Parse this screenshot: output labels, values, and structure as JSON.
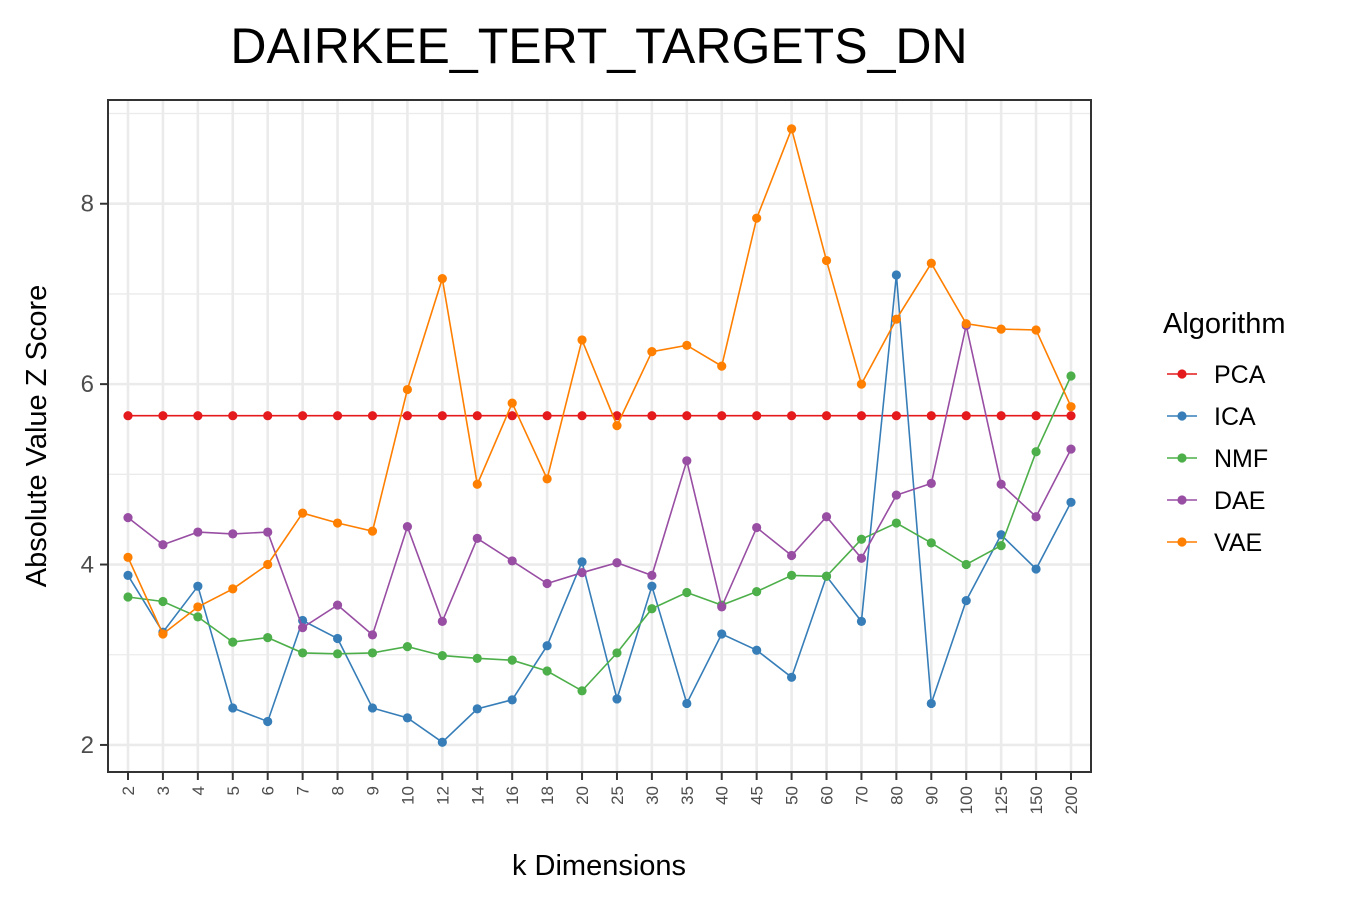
{
  "chart_data": {
    "type": "line",
    "title": "DAIRKEE_TERT_TARGETS_DN",
    "xlabel": "k Dimensions",
    "ylabel": "Absolute Value Z Score",
    "categories": [
      "2",
      "3",
      "4",
      "5",
      "6",
      "7",
      "8",
      "9",
      "10",
      "12",
      "14",
      "16",
      "18",
      "20",
      "25",
      "30",
      "35",
      "40",
      "45",
      "50",
      "60",
      "70",
      "80",
      "90",
      "100",
      "125",
      "150",
      "200"
    ],
    "ylim": [
      1.7,
      9.15
    ],
    "yticks": [
      2,
      4,
      6,
      8
    ],
    "grid": true,
    "legend": {
      "title": "Algorithm",
      "position": "right"
    },
    "series": [
      {
        "name": "PCA",
        "color": "#e41a1c",
        "values": [
          5.65,
          5.65,
          5.65,
          5.65,
          5.65,
          5.65,
          5.65,
          5.65,
          5.65,
          5.65,
          5.65,
          5.65,
          5.65,
          5.65,
          5.65,
          5.65,
          5.65,
          5.65,
          5.65,
          5.65,
          5.65,
          5.65,
          5.65,
          5.65,
          5.65,
          5.65,
          5.65,
          5.65
        ]
      },
      {
        "name": "ICA",
        "color": "#377eb8",
        "values": [
          3.88,
          3.25,
          3.76,
          2.41,
          2.26,
          3.38,
          3.18,
          2.41,
          2.3,
          2.03,
          2.4,
          2.5,
          3.1,
          4.03,
          2.51,
          3.76,
          2.46,
          3.23,
          3.05,
          2.75,
          3.87,
          3.37,
          7.21,
          2.46,
          3.6,
          4.33,
          3.95,
          4.69
        ]
      },
      {
        "name": "NMF",
        "color": "#4daf4a",
        "values": [
          3.64,
          3.59,
          3.42,
          3.14,
          3.19,
          3.02,
          3.01,
          3.02,
          3.09,
          2.99,
          2.96,
          2.94,
          2.82,
          2.6,
          3.02,
          3.51,
          3.69,
          3.55,
          3.7,
          3.88,
          3.87,
          4.28,
          4.46,
          4.24,
          4.0,
          4.21,
          5.25,
          6.09
        ]
      },
      {
        "name": "DAE",
        "color": "#984ea3",
        "values": [
          4.52,
          4.22,
          4.36,
          4.34,
          4.36,
          3.3,
          3.55,
          3.22,
          4.42,
          3.37,
          4.29,
          4.04,
          3.79,
          3.91,
          4.02,
          3.88,
          5.15,
          3.53,
          4.41,
          4.1,
          4.53,
          4.07,
          4.77,
          4.9,
          6.65,
          4.89,
          4.53,
          5.28
        ]
      },
      {
        "name": "VAE",
        "color": "#ff7f00",
        "values": [
          4.08,
          3.23,
          3.53,
          3.73,
          4.0,
          4.57,
          4.46,
          4.37,
          5.94,
          7.17,
          4.89,
          5.79,
          4.95,
          6.49,
          5.54,
          6.36,
          6.43,
          6.2,
          7.84,
          8.83,
          7.37,
          6.0,
          6.72,
          7.34,
          6.67,
          6.61,
          6.6,
          5.75
        ]
      }
    ]
  }
}
